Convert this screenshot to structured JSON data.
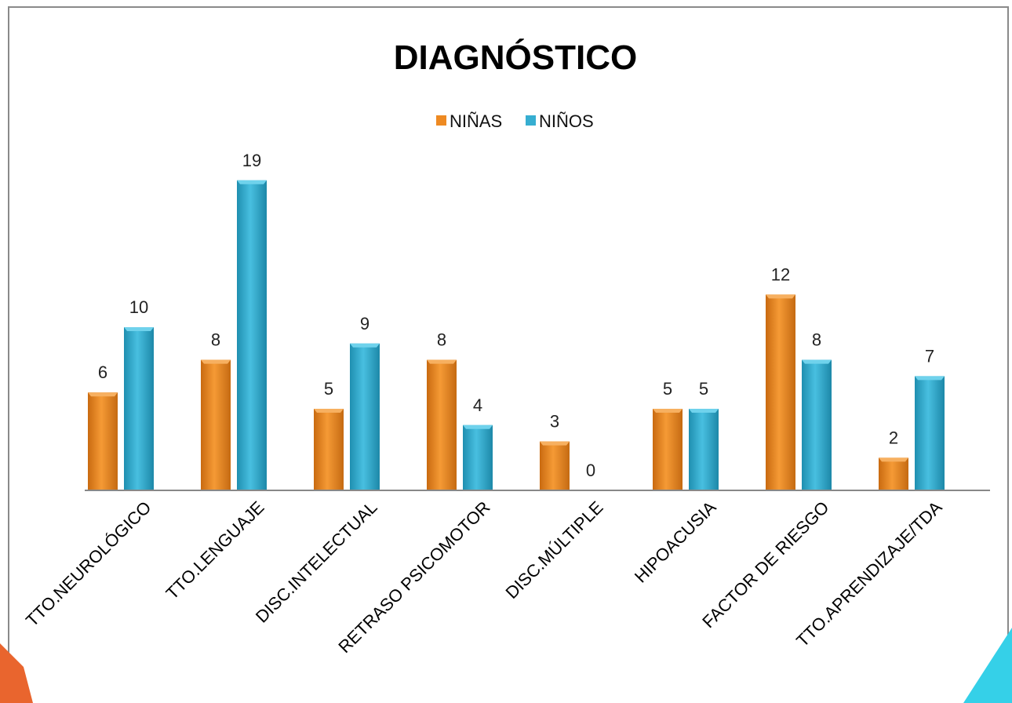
{
  "colors": {
    "ninas": "#ee8a22",
    "ninos": "#36aed1",
    "axis": "#888888",
    "corner_left": "#e9652e",
    "corner_right": "#35d0e8"
  },
  "chart_data": {
    "type": "bar",
    "title": "DIAGNÓSTICO",
    "xlabel": "",
    "ylabel": "",
    "ylim": [
      0,
      19
    ],
    "grid": false,
    "legend_position": "top-center",
    "categories": [
      "TTO.NEUROLÓGICO",
      "TTO.LENGUAJE",
      "DISC.INTELECTUAL",
      "RETRASO PSICOMOTOR",
      "DISC.MÚLTIPLE",
      "HIPOACUSIA",
      "FACTOR DE RIESGO",
      "TTO.APRENDIZAJE/TDA"
    ],
    "series": [
      {
        "name": "NIÑAS",
        "values": [
          6,
          8,
          5,
          8,
          3,
          5,
          12,
          2
        ]
      },
      {
        "name": "NIÑOS",
        "values": [
          10,
          19,
          9,
          4,
          0,
          5,
          8,
          7
        ]
      }
    ]
  }
}
